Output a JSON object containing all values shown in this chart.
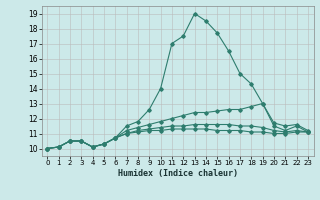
{
  "title": "",
  "xlabel": "Humidex (Indice chaleur)",
  "ylabel": "",
  "background_color": "#cce9e9",
  "grid_color": "#bbbbbb",
  "line_color": "#2e7d6e",
  "xlim": [
    -0.5,
    23.5
  ],
  "ylim": [
    9.5,
    19.5
  ],
  "xticks": [
    0,
    1,
    2,
    3,
    4,
    5,
    6,
    7,
    8,
    9,
    10,
    11,
    12,
    13,
    14,
    15,
    16,
    17,
    18,
    19,
    20,
    21,
    22,
    23
  ],
  "yticks": [
    10,
    11,
    12,
    13,
    14,
    15,
    16,
    17,
    18,
    19
  ],
  "series": [
    [
      10.0,
      10.1,
      10.5,
      10.5,
      10.1,
      10.3,
      10.7,
      11.5,
      11.8,
      12.6,
      14.0,
      17.0,
      17.5,
      19.0,
      18.5,
      17.7,
      16.5,
      15.0,
      14.3,
      13.0,
      11.5,
      11.2,
      11.5,
      11.1
    ],
    [
      10.0,
      10.1,
      10.5,
      10.5,
      10.1,
      10.3,
      10.7,
      11.2,
      11.4,
      11.6,
      11.8,
      12.0,
      12.2,
      12.4,
      12.4,
      12.5,
      12.6,
      12.6,
      12.8,
      13.0,
      11.7,
      11.5,
      11.6,
      11.2
    ],
    [
      10.0,
      10.1,
      10.5,
      10.5,
      10.1,
      10.3,
      10.7,
      11.0,
      11.2,
      11.3,
      11.4,
      11.5,
      11.5,
      11.6,
      11.6,
      11.6,
      11.6,
      11.5,
      11.5,
      11.4,
      11.2,
      11.1,
      11.2,
      11.1
    ],
    [
      10.0,
      10.1,
      10.5,
      10.5,
      10.1,
      10.3,
      10.7,
      11.0,
      11.1,
      11.2,
      11.2,
      11.3,
      11.3,
      11.3,
      11.3,
      11.2,
      11.2,
      11.2,
      11.1,
      11.1,
      11.0,
      11.0,
      11.1,
      11.1
    ]
  ]
}
